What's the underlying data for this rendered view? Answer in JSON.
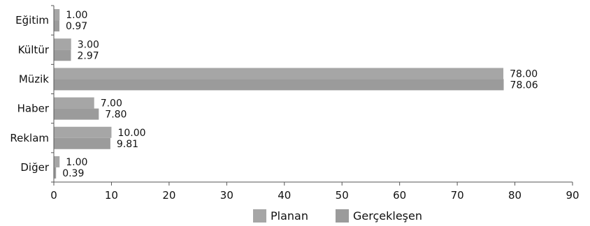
{
  "chart_data": {
    "type": "bar",
    "orientation": "horizontal",
    "categories": [
      "Eğitim",
      "Kültür",
      "Müzik",
      "Haber",
      "Reklam",
      "Diğer"
    ],
    "series": [
      {
        "name": "Planan",
        "values": [
          1.0,
          3.0,
          78.0,
          7.0,
          10.0,
          1.0
        ],
        "labels": [
          "1.00",
          "3.00",
          "78.00",
          "7.00",
          "10.00",
          "1.00"
        ],
        "color": "#a6a6a6"
      },
      {
        "name": "Gerçekleşen",
        "values": [
          0.97,
          2.97,
          78.06,
          7.8,
          9.81,
          0.39
        ],
        "labels": [
          "0.97",
          "2.97",
          "78.06",
          "7.80",
          "9.81",
          "0.39"
        ],
        "color": "#9b9b9b"
      }
    ],
    "xlim": [
      0,
      90
    ],
    "xticks": [
      "0",
      "10",
      "20",
      "30",
      "40",
      "50",
      "60",
      "70",
      "80",
      "90"
    ],
    "legend_position": "bottom",
    "grid": false
  }
}
